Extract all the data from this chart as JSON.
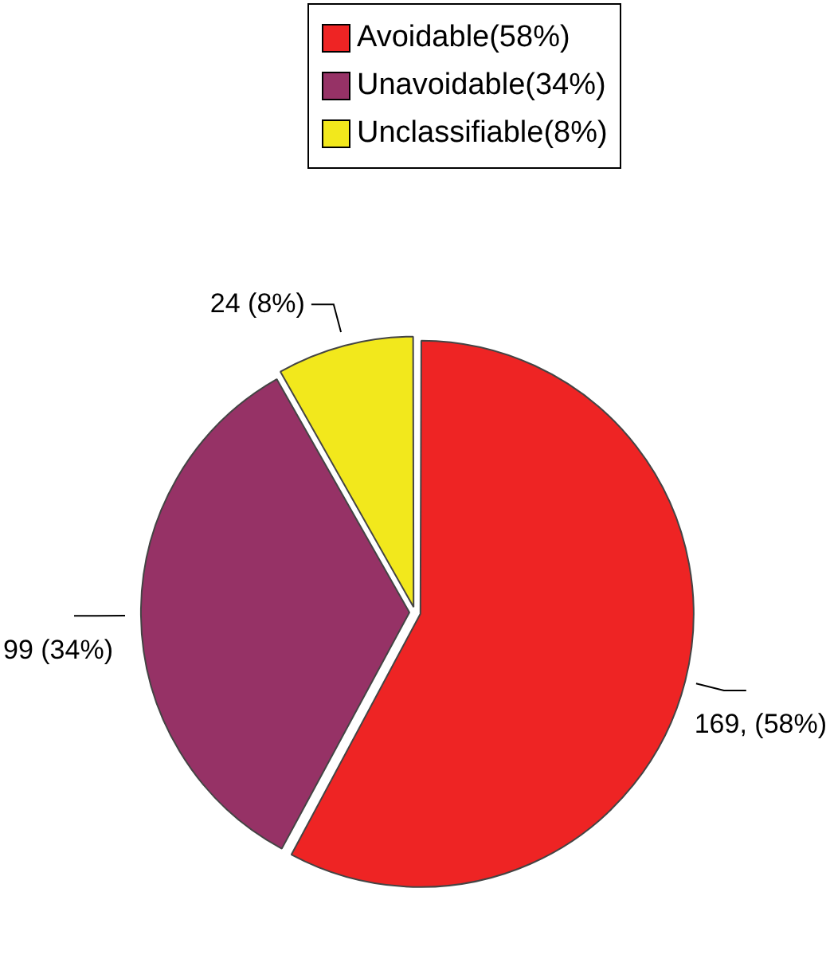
{
  "chart_data": {
    "type": "pie",
    "categories": [
      "Avoidable(58%)",
      "Unavoidable(34%)",
      "Unclassifiable(8%)"
    ],
    "values": [
      169,
      99,
      24
    ],
    "colors": [
      "#ee2424",
      "#963266",
      "#f2e81c"
    ],
    "value_labels": [
      "169, (58%)",
      "99 (34%)",
      "24 (8%)"
    ],
    "legend": "top"
  }
}
